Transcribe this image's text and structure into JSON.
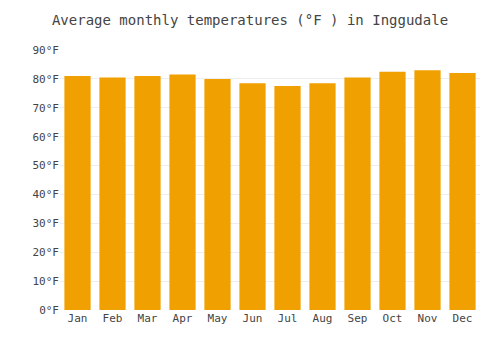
{
  "chart_data": {
    "type": "bar",
    "title": "Average monthly temperatures (°F ) in Inggudale",
    "categories": [
      "Jan",
      "Feb",
      "Mar",
      "Apr",
      "May",
      "Jun",
      "Jul",
      "Aug",
      "Sep",
      "Oct",
      "Nov",
      "Dec"
    ],
    "values": [
      81,
      80.5,
      81,
      81.5,
      80,
      78.5,
      77.5,
      78.5,
      80.5,
      82.5,
      83,
      82
    ],
    "color": "#F0A000",
    "ylim": [
      0,
      90
    ],
    "yticks": [
      {
        "value": 0,
        "label": "0°F"
      },
      {
        "value": 10,
        "label": "10°F"
      },
      {
        "value": 20,
        "label": "20°F"
      },
      {
        "value": 30,
        "label": "30°F"
      },
      {
        "value": 40,
        "label": "40°F"
      },
      {
        "value": 50,
        "label": "50°F"
      },
      {
        "value": 60,
        "label": "60°F"
      },
      {
        "value": 70,
        "label": "70°F"
      },
      {
        "value": 80,
        "label": "80°F"
      },
      {
        "value": 90,
        "label": "90°F"
      }
    ],
    "grid": true
  }
}
